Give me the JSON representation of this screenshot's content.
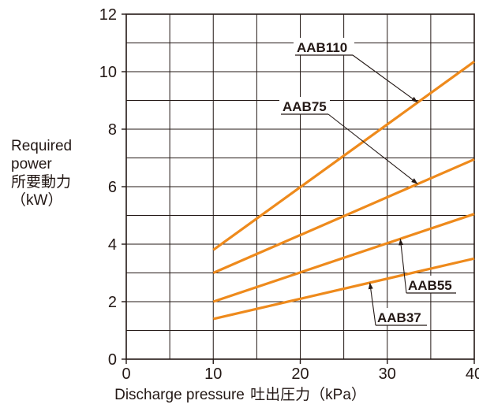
{
  "chart_data": {
    "type": "line",
    "title": "",
    "ylabel_lines": [
      "Required",
      "power",
      "所要動力",
      "（kW）"
    ],
    "xlabel_en": "Discharge pressure",
    "xlabel_jp": "吐出圧力（kPa）",
    "xlim": [
      0,
      40
    ],
    "ylim": [
      0,
      12
    ],
    "x_ticks": [
      0,
      10,
      20,
      30,
      40
    ],
    "y_ticks": [
      0,
      2,
      4,
      6,
      8,
      10,
      12
    ],
    "x_tick_labels": [
      "0",
      "10",
      "20",
      "30",
      "40"
    ],
    "y_tick_labels": [
      "0",
      "2",
      "4",
      "6",
      "8",
      "10",
      "12"
    ],
    "grid": true,
    "line_color": "#ee8a1c",
    "series": [
      {
        "name": "AAB110",
        "x": [
          10,
          40
        ],
        "y": [
          3.8,
          10.35
        ]
      },
      {
        "name": "AAB75",
        "x": [
          10,
          40
        ],
        "y": [
          3.0,
          6.95
        ]
      },
      {
        "name": "AAB55",
        "x": [
          10,
          40
        ],
        "y": [
          2.0,
          5.05
        ]
      },
      {
        "name": "AAB37",
        "x": [
          10,
          40
        ],
        "y": [
          1.4,
          3.5
        ]
      }
    ],
    "annotations": [
      {
        "series": 0,
        "label": "AAB110",
        "point_x": 33.5
      },
      {
        "series": 1,
        "label": "AAB75",
        "point_x": 33.5
      },
      {
        "series": 2,
        "label": "AAB55",
        "point_x": 31.5
      },
      {
        "series": 3,
        "label": "AAB37",
        "point_x": 28.0
      }
    ]
  }
}
